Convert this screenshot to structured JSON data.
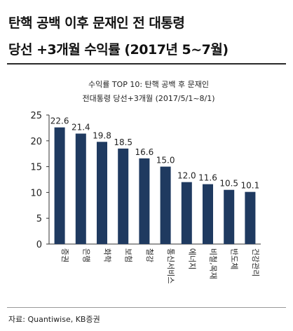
{
  "header": {
    "title_line1": "탄핵 공백 이후 문재인 전 대통령",
    "title_line2": "당선 +3개월 수익률 (2017년 5~7월)"
  },
  "chart_data": {
    "type": "bar",
    "title": "수익률 TOP 10: 탄핵 공백 후 문재인",
    "subtitle": "전대통령 당선+3개월 (2017/5/1~8/1)",
    "categories": [
      "증권",
      "은행",
      "화학",
      "보험",
      "철강",
      "통신서비스",
      "에너지",
      "비철,목재",
      "반도체",
      "건강관리"
    ],
    "values": [
      22.6,
      21.4,
      19.8,
      18.5,
      16.6,
      15.0,
      12.0,
      11.6,
      10.5,
      10.1
    ],
    "value_labels": [
      "22.6",
      "21.4",
      "19.8",
      "18.5",
      "16.6",
      "15.0",
      "12.0",
      "11.6",
      "10.5",
      "10.1"
    ],
    "ylim": [
      0,
      25
    ],
    "yticks": [
      0,
      5,
      10,
      15,
      20,
      25
    ],
    "bar_color": "#1f3a60",
    "grid": false,
    "xlabel": "",
    "ylabel": ""
  },
  "footer": {
    "source": "자료: Quantiwise, KB증권"
  }
}
